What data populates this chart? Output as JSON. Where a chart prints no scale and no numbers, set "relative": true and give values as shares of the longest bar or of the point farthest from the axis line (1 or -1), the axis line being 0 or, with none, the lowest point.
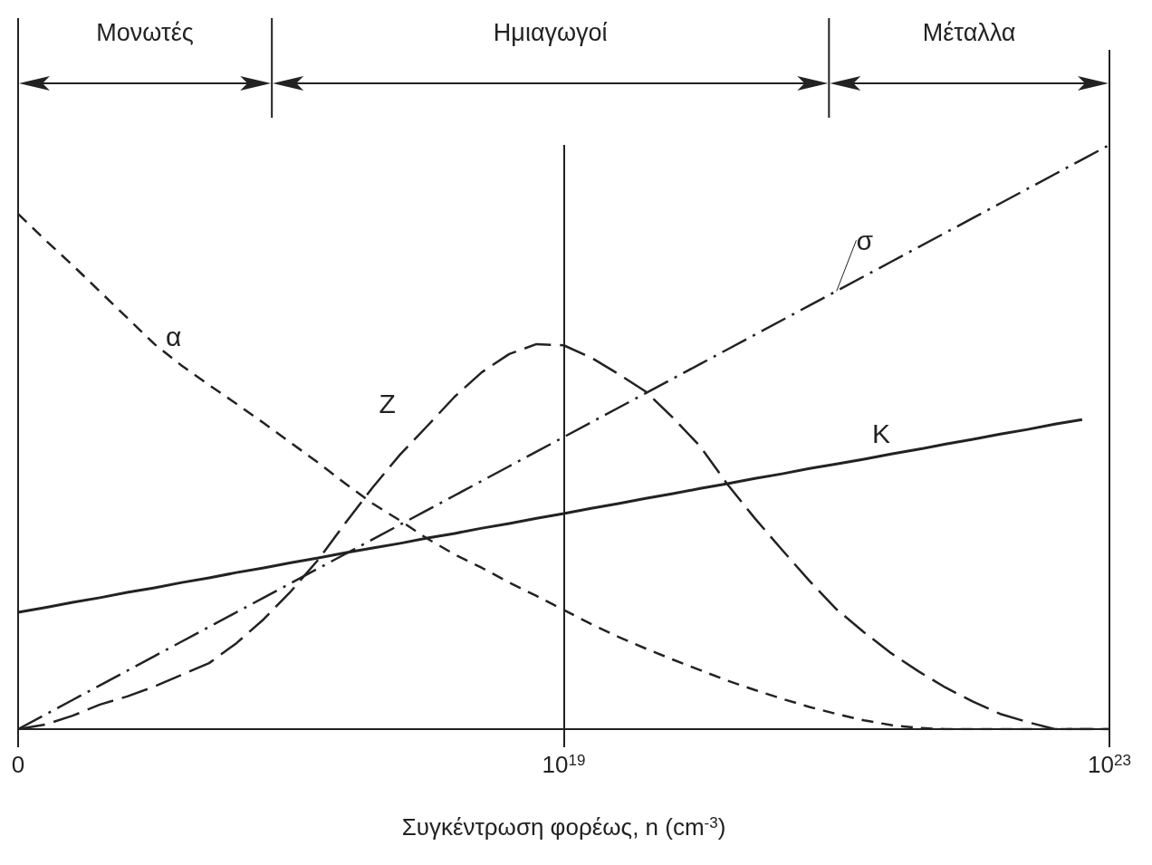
{
  "chart_data": {
    "type": "line",
    "relative": true,
    "categories": [
      "0",
      null,
      null,
      null,
      null,
      null,
      null,
      null,
      null,
      null,
      null,
      null,
      null,
      null,
      null,
      null,
      null,
      null,
      null,
      null,
      "10$^{19}$",
      null,
      null,
      null,
      null,
      null,
      null,
      null,
      null,
      null,
      null,
      null,
      null,
      null,
      null,
      null,
      null,
      null,
      null,
      null,
      "10$^{23}$"
    ],
    "xlabel": "Συγκέντρωση φορέως, n (cm$^{-3}$)",
    "annotations": [
      "Μονωτές",
      "Ημιαγωγοί",
      "Μέταλλα"
    ],
    "ref_lines": [
      {
        "axis": "x",
        "value": "10$^{19}$"
      }
    ],
    "series": [
      {
        "name": "α",
        "color": "#222222",
        "line_style": "dashed",
        "values": [
          0.882,
          0.837,
          0.794,
          0.749,
          0.704,
          0.659,
          0.622,
          0.589,
          0.557,
          0.524,
          0.49,
          0.456,
          0.42,
          0.386,
          0.357,
          0.326,
          0.299,
          0.276,
          0.251,
          0.228,
          0.204,
          0.18,
          0.158,
          0.138,
          0.119,
          0.101,
          0.083,
          0.067,
          0.052,
          0.038,
          0.026,
          0.015,
          0.007,
          0.002,
          0,
          0,
          0,
          0,
          0,
          0,
          0
        ]
      },
      {
        "name": "Z",
        "color": "#222222",
        "line_style": "longdash",
        "values": [
          0,
          0.008,
          0.023,
          0.042,
          0.056,
          0.073,
          0.093,
          0.113,
          0.147,
          0.188,
          0.236,
          0.29,
          0.353,
          0.414,
          0.47,
          0.519,
          0.569,
          0.611,
          0.642,
          0.659,
          0.657,
          0.636,
          0.608,
          0.578,
          0.533,
          0.484,
          0.419,
          0.361,
          0.307,
          0.254,
          0.205,
          0.166,
          0.13,
          0.099,
          0.071,
          0.047,
          0.026,
          0.012,
          0,
          0,
          0
        ]
      },
      {
        "name": "σ",
        "color": "#222222",
        "line_style": "dashdot",
        "values": [
          0,
          0.025,
          0.05,
          0.075,
          0.1,
          0.125,
          0.15,
          0.175,
          0.2,
          0.225,
          0.25,
          0.275,
          0.3,
          0.325,
          0.35,
          0.375,
          0.4,
          0.425,
          0.45,
          0.475,
          0.5,
          0.525,
          0.55,
          0.575,
          0.6,
          0.625,
          0.65,
          0.675,
          0.7,
          0.725,
          0.75,
          0.775,
          0.8,
          0.825,
          0.85,
          0.875,
          0.9,
          0.925,
          0.95,
          0.975,
          1
        ]
      },
      {
        "name": "K",
        "color": "#222222",
        "line_style": "solid",
        "values": [
          0.2,
          0.208,
          0.217,
          0.225,
          0.234,
          0.242,
          0.251,
          0.259,
          0.268,
          0.276,
          0.285,
          0.293,
          0.302,
          0.31,
          0.318,
          0.327,
          0.335,
          0.344,
          0.352,
          0.361,
          0.369,
          0.378,
          0.386,
          0.395,
          0.403,
          0.412,
          0.42,
          0.429,
          0.437,
          0.446,
          0.454,
          0.462,
          0.471,
          0.479,
          0.488,
          0.496,
          0.505,
          0.513,
          0.522,
          0.53,
          null
        ]
      }
    ]
  }
}
